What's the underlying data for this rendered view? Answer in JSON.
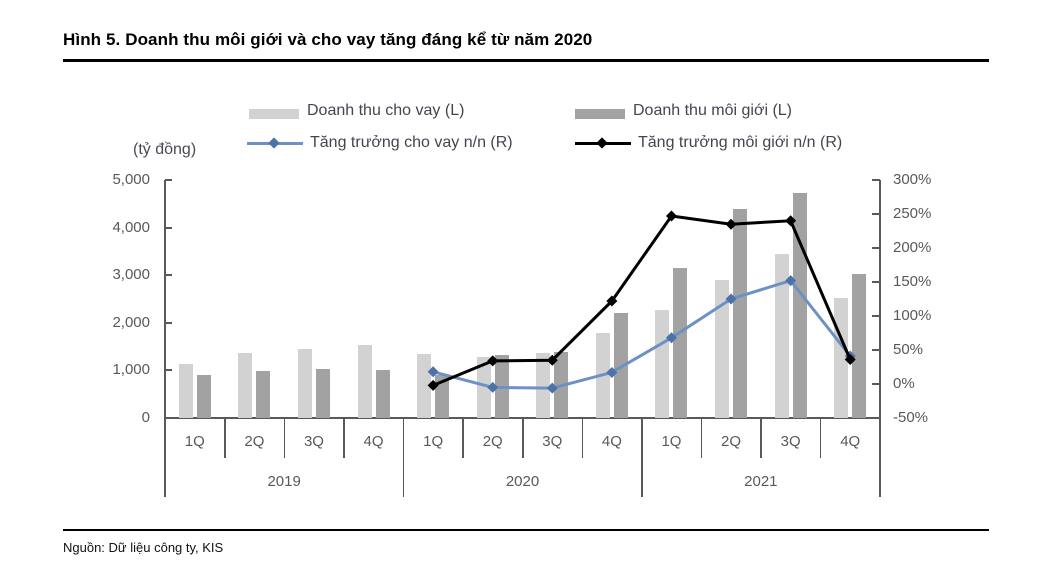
{
  "title": "Hình 5. Doanh thu môi giới và cho vay tăng đáng kể từ năm 2020",
  "source": "Nguồn: Dữ liệu công ty, KIS",
  "unit_label": "(tỷ đồng)",
  "colors": {
    "bar_cho_vay": "#d2d2d2",
    "bar_moi_gioi": "#a2a2a2",
    "line_cho_vay": "#6d91c4",
    "marker_cho_vay": "#4d72a8",
    "line_moi_gioi": "#000000",
    "axis_text": "#595959",
    "axis_line": "#595959"
  },
  "chart_data": {
    "type": "bar+line combo",
    "categories": [
      "1Q",
      "2Q",
      "3Q",
      "4Q",
      "1Q",
      "2Q",
      "3Q",
      "4Q",
      "1Q",
      "2Q",
      "3Q",
      "4Q"
    ],
    "year_groups": [
      {
        "label": "2019",
        "quarters": 4
      },
      {
        "label": "2020",
        "quarters": 4
      },
      {
        "label": "2021",
        "quarters": 4
      }
    ],
    "series": [
      {
        "name": "Doanh thu cho vay (L)",
        "type": "bar",
        "axis": "left",
        "values": [
          1130,
          1360,
          1440,
          1530,
          1350,
          1290,
          1370,
          1790,
          2270,
          2900,
          3450,
          2520
        ]
      },
      {
        "name": "Doanh thu môi giới (L)",
        "type": "bar",
        "axis": "left",
        "values": [
          910,
          980,
          1030,
          1010,
          900,
          1320,
          1390,
          2200,
          3150,
          4390,
          4730,
          3030
        ]
      },
      {
        "name": "Tăng trưởng cho vay n/n (R)",
        "type": "line",
        "axis": "right",
        "values": [
          null,
          null,
          null,
          null,
          18,
          -5,
          -6,
          17,
          68,
          125,
          152,
          41
        ]
      },
      {
        "name": "Tăng trưởng môi giới n/n (R)",
        "type": "line",
        "axis": "right",
        "values": [
          null,
          null,
          null,
          null,
          -2,
          34,
          35,
          122,
          247,
          235,
          240,
          36
        ]
      }
    ],
    "left_axis": {
      "title": "(tỷ đồng)",
      "min": 0,
      "max": 5000,
      "tick_step": 1000,
      "tick_labels": [
        "5,000",
        "4,000",
        "3,000",
        "2,000",
        "1,000",
        "0"
      ]
    },
    "right_axis": {
      "min": -50,
      "max": 300,
      "tick_step": 50,
      "tick_labels": [
        "300%",
        "250%",
        "200%",
        "150%",
        "100%",
        "50%",
        "0%",
        "-50%"
      ]
    },
    "grid": "off",
    "legend_position": "top"
  }
}
